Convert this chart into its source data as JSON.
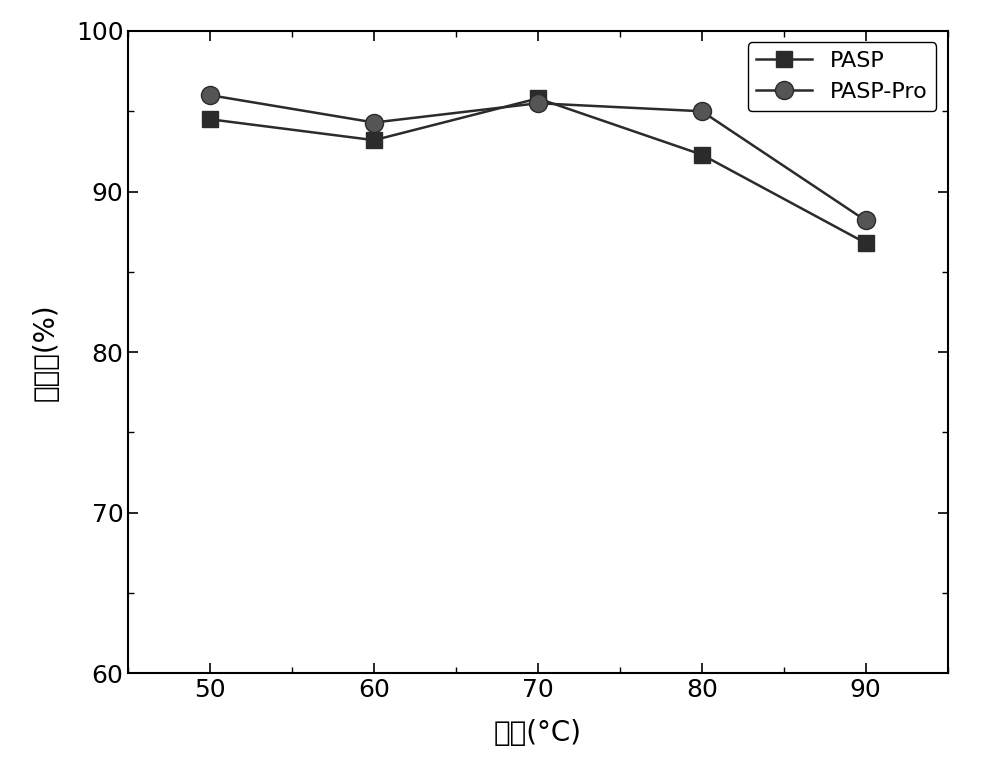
{
  "x": [
    50,
    60,
    70,
    80,
    90
  ],
  "pasp_y": [
    94.5,
    93.2,
    95.8,
    92.3,
    86.8
  ],
  "pasp_pro_y": [
    96.0,
    94.3,
    95.5,
    95.0,
    88.2
  ],
  "xlabel": "温度(°C)",
  "ylabel": "阵垃率(%)",
  "legend_pasp": "PASP",
  "legend_pasp_pro": "PASP-Pro",
  "xlim": [
    45,
    95
  ],
  "ylim": [
    60,
    100
  ],
  "yticks": [
    60,
    70,
    80,
    90,
    100
  ],
  "xticks": [
    50,
    60,
    70,
    80,
    90
  ],
  "line_color": "#2b2b2b",
  "marker_square": "s",
  "marker_circle": "o",
  "marker_size": 11,
  "marker_size_circle": 13,
  "line_width": 1.8,
  "background_color": "#ffffff",
  "tick_labelsize": 18,
  "axis_labelsize": 20,
  "legend_fontsize": 16
}
